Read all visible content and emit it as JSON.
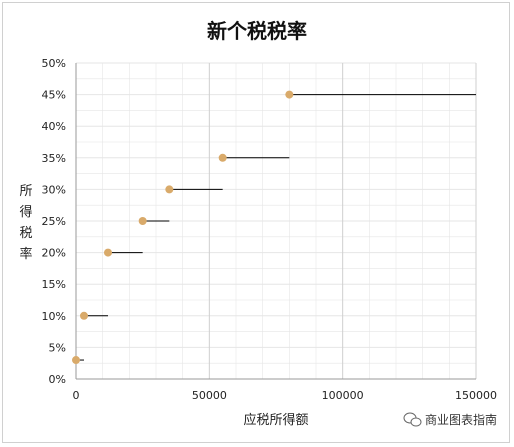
{
  "chart_data": {
    "type": "scatter",
    "title": "新个税税率",
    "xlabel": "应税所得额",
    "ylabel": "所得税率",
    "xlim": [
      0,
      150000
    ],
    "ylim": [
      0,
      0.5
    ],
    "x_ticks": [
      "0",
      "50000",
      "100000",
      "150000"
    ],
    "y_ticks": [
      "0%",
      "5%",
      "10%",
      "15%",
      "20%",
      "25%",
      "30%",
      "35%",
      "40%",
      "45%",
      "50%"
    ],
    "grid": true,
    "colors": {
      "point": "#d9aa6a",
      "segment": "#000000",
      "grid": "#e6e6e6"
    },
    "points": [
      {
        "x": 0,
        "y": 0.03
      },
      {
        "x": 3000,
        "y": 0.1
      },
      {
        "x": 12000,
        "y": 0.2
      },
      {
        "x": 25000,
        "y": 0.25
      },
      {
        "x": 35000,
        "y": 0.3
      },
      {
        "x": 55000,
        "y": 0.35
      },
      {
        "x": 80000,
        "y": 0.45
      }
    ],
    "segments": [
      {
        "x_start": 0,
        "x_end": 3000,
        "y": 0.03
      },
      {
        "x_start": 3000,
        "x_end": 12000,
        "y": 0.1
      },
      {
        "x_start": 12000,
        "x_end": 25000,
        "y": 0.2
      },
      {
        "x_start": 25000,
        "x_end": 35000,
        "y": 0.25
      },
      {
        "x_start": 35000,
        "x_end": 55000,
        "y": 0.3
      },
      {
        "x_start": 55000,
        "x_end": 80000,
        "y": 0.35
      },
      {
        "x_start": 80000,
        "x_end": 150000,
        "y": 0.45
      }
    ]
  },
  "watermark": {
    "text": "商业图表指南",
    "icon": "wechat-icon"
  }
}
